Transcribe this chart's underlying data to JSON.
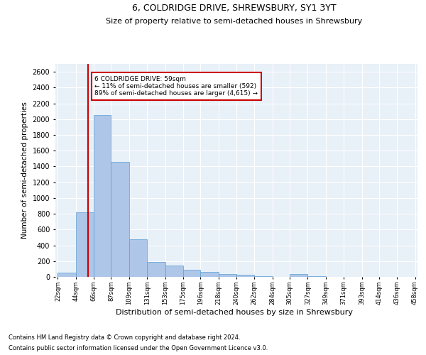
{
  "title": "6, COLDRIDGE DRIVE, SHREWSBURY, SY1 3YT",
  "subtitle": "Size of property relative to semi-detached houses in Shrewsbury",
  "xlabel": "Distribution of semi-detached houses by size in Shrewsbury",
  "ylabel": "Number of semi-detached properties",
  "footer_line1": "Contains HM Land Registry data © Crown copyright and database right 2024.",
  "footer_line2": "Contains public sector information licensed under the Open Government Licence v3.0.",
  "annotation_title": "6 COLDRIDGE DRIVE: 59sqm",
  "annotation_line1": "← 11% of semi-detached houses are smaller (592)",
  "annotation_line2": "89% of semi-detached houses are larger (4,615) →",
  "property_size": 59,
  "bar_edges": [
    22,
    44,
    66,
    87,
    109,
    131,
    153,
    175,
    196,
    218,
    240,
    262,
    284,
    305,
    327,
    349,
    371,
    393,
    414,
    436,
    458
  ],
  "bar_heights": [
    50,
    820,
    2050,
    1460,
    480,
    190,
    140,
    90,
    60,
    40,
    25,
    5,
    0,
    40,
    5,
    0,
    0,
    0,
    0,
    0
  ],
  "bar_color": "#aec6e8",
  "bar_edge_color": "#5a9fd4",
  "redline_color": "#cc0000",
  "annotation_box_color": "#cc0000",
  "background_color": "#e8f0f8",
  "grid_color": "#ffffff",
  "ylim": [
    0,
    2700
  ],
  "yticks": [
    0,
    200,
    400,
    600,
    800,
    1000,
    1200,
    1400,
    1600,
    1800,
    2000,
    2200,
    2400,
    2600
  ],
  "figsize": [
    6.0,
    5.0
  ],
  "dpi": 100
}
